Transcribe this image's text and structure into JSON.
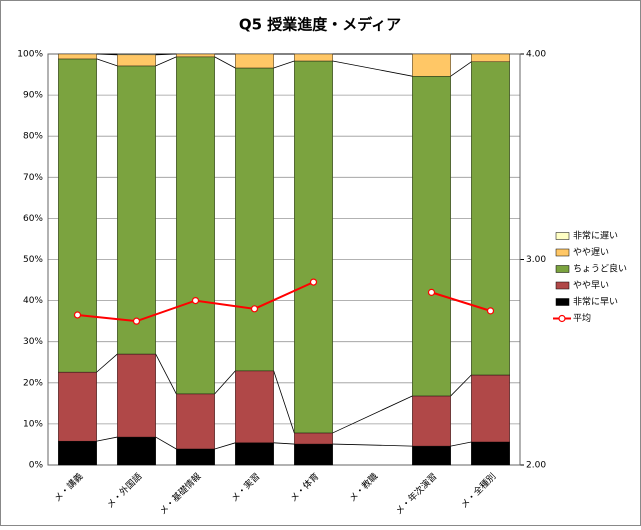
{
  "chart_data": {
    "type": "bar",
    "stacked": true,
    "title": "Q5 授業進度・メディア",
    "categories": [
      "メ・講義",
      "メ・外国語",
      "メ・基礎情報",
      "メ・実習",
      "メ・体育",
      "メ・教職",
      "メ・年次演習",
      "メ・全種別"
    ],
    "series": [
      {
        "name": "非常に早い",
        "color": "#000000",
        "values": [
          5.8,
          6.8,
          3.9,
          5.4,
          5.1,
          null,
          4.6,
          5.6
        ]
      },
      {
        "name": "やや早い",
        "color": "#b04848",
        "values": [
          16.8,
          20.2,
          13.4,
          17.5,
          2.7,
          null,
          12.2,
          16.3
        ]
      },
      {
        "name": "ちょうど良い",
        "color": "#7ba33f",
        "values": [
          76.2,
          70.1,
          82.0,
          73.7,
          90.5,
          null,
          77.8,
          76.2
        ]
      },
      {
        "name": "やや遅い",
        "color": "#ffc766",
        "values": [
          1.2,
          2.7,
          0.7,
          3.4,
          1.7,
          null,
          5.4,
          1.9
        ]
      },
      {
        "name": "非常に遅い",
        "color": "#ffffc4",
        "values": [
          0,
          0.2,
          0,
          0,
          0,
          null,
          0,
          0
        ]
      },
      {
        "name": "平均",
        "color": "#ff0000",
        "type": "line",
        "axis": "y2",
        "values": [
          2.73,
          2.7,
          2.8,
          2.76,
          2.89,
          null,
          2.84,
          2.75
        ]
      }
    ],
    "ylim": [
      0,
      100
    ],
    "yticks": [
      {
        "value": 0,
        "label": "0%"
      },
      {
        "value": 10,
        "label": "10%"
      },
      {
        "value": 20,
        "label": "20%"
      },
      {
        "value": 30,
        "label": "30%"
      },
      {
        "value": 40,
        "label": "40%"
      },
      {
        "value": 50,
        "label": "50%"
      },
      {
        "value": 60,
        "label": "60%"
      },
      {
        "value": 70,
        "label": "70%"
      },
      {
        "value": 80,
        "label": "80%"
      },
      {
        "value": 90,
        "label": "90%"
      },
      {
        "value": 100,
        "label": "100%"
      }
    ],
    "y2lim": [
      2,
      4
    ],
    "y2ticks": [
      {
        "value": 2,
        "label": "2.00"
      },
      {
        "value": 3,
        "label": "3.00"
      },
      {
        "value": 4,
        "label": "4.00"
      }
    ],
    "grid": true,
    "legend": "right"
  }
}
